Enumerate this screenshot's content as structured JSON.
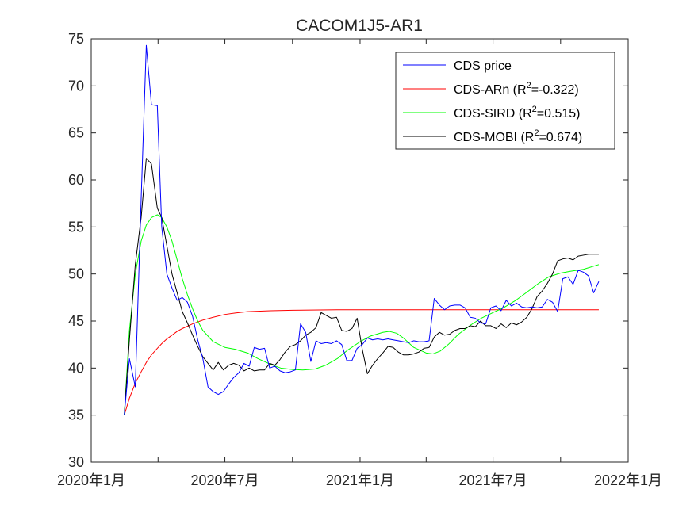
{
  "chart_data": {
    "type": "line",
    "title": "CACOM1J5-AR1",
    "xlabel": "",
    "ylabel": "",
    "x_range": [
      "2020-01-01",
      "2022-01-01"
    ],
    "ylim": [
      30,
      75
    ],
    "y_ticks": [
      30,
      35,
      40,
      45,
      50,
      55,
      60,
      65,
      70,
      75
    ],
    "x_tick_labels": [
      "2020年1月",
      "2020年7月",
      "2021年1月",
      "2021年7月",
      "2022年1月"
    ],
    "grid": false,
    "legend_position": "top-right",
    "series": [
      {
        "name": "CDS price",
        "color": "#0000ff",
        "points": [
          [
            "2020-02-15",
            35.0
          ],
          [
            "2020-02-22",
            41.0
          ],
          [
            "2020-03-01",
            38.0
          ],
          [
            "2020-03-09",
            58.0
          ],
          [
            "2020-03-16",
            74.3
          ],
          [
            "2020-03-23",
            68.0
          ],
          [
            "2020-03-31",
            67.9
          ],
          [
            "2020-04-06",
            55.0
          ],
          [
            "2020-04-13",
            50.0
          ],
          [
            "2020-04-20",
            48.5
          ],
          [
            "2020-04-27",
            47.2
          ],
          [
            "2020-05-04",
            47.5
          ],
          [
            "2020-05-11",
            47.0
          ],
          [
            "2020-05-18",
            45.5
          ],
          [
            "2020-05-25",
            43.0
          ],
          [
            "2020-06-01",
            41.0
          ],
          [
            "2020-06-08",
            38.0
          ],
          [
            "2020-06-15",
            37.5
          ],
          [
            "2020-06-22",
            37.2
          ],
          [
            "2020-06-29",
            37.5
          ],
          [
            "2020-07-06",
            38.3
          ],
          [
            "2020-07-13",
            39.0
          ],
          [
            "2020-07-20",
            39.5
          ],
          [
            "2020-07-27",
            40.5
          ],
          [
            "2020-08-03",
            40.2
          ],
          [
            "2020-08-10",
            42.2
          ],
          [
            "2020-08-17",
            42.0
          ],
          [
            "2020-08-24",
            42.1
          ],
          [
            "2020-08-31",
            40.0
          ],
          [
            "2020-09-07",
            40.2
          ],
          [
            "2020-09-14",
            39.7
          ],
          [
            "2020-09-21",
            39.5
          ],
          [
            "2020-09-28",
            39.6
          ],
          [
            "2020-10-05",
            39.8
          ],
          [
            "2020-10-12",
            44.7
          ],
          [
            "2020-10-19",
            43.8
          ],
          [
            "2020-10-26",
            40.7
          ],
          [
            "2020-11-02",
            42.9
          ],
          [
            "2020-11-09",
            42.6
          ],
          [
            "2020-11-16",
            42.7
          ],
          [
            "2020-11-23",
            42.6
          ],
          [
            "2020-11-30",
            42.9
          ],
          [
            "2020-12-07",
            42.5
          ],
          [
            "2020-12-14",
            40.8
          ],
          [
            "2020-12-21",
            40.8
          ],
          [
            "2020-12-28",
            42.1
          ],
          [
            "2021-01-04",
            42.5
          ],
          [
            "2021-01-11",
            43.2
          ],
          [
            "2021-01-18",
            43.0
          ],
          [
            "2021-01-25",
            43.1
          ],
          [
            "2021-02-01",
            43.0
          ],
          [
            "2021-02-08",
            43.1
          ],
          [
            "2021-02-15",
            43.0
          ],
          [
            "2021-02-22",
            42.9
          ],
          [
            "2021-03-01",
            42.8
          ],
          [
            "2021-03-08",
            42.7
          ],
          [
            "2021-03-15",
            42.9
          ],
          [
            "2021-03-22",
            42.8
          ],
          [
            "2021-03-29",
            42.8
          ],
          [
            "2021-04-05",
            42.9
          ],
          [
            "2021-04-12",
            47.4
          ],
          [
            "2021-04-19",
            46.7
          ],
          [
            "2021-04-26",
            46.2
          ],
          [
            "2021-05-03",
            46.6
          ],
          [
            "2021-05-10",
            46.7
          ],
          [
            "2021-05-17",
            46.7
          ],
          [
            "2021-05-24",
            46.4
          ],
          [
            "2021-05-31",
            45.4
          ],
          [
            "2021-06-07",
            45.3
          ],
          [
            "2021-06-14",
            44.8
          ],
          [
            "2021-06-21",
            44.7
          ],
          [
            "2021-06-28",
            46.4
          ],
          [
            "2021-07-05",
            46.6
          ],
          [
            "2021-07-12",
            46.1
          ],
          [
            "2021-07-19",
            47.2
          ],
          [
            "2021-07-26",
            46.6
          ],
          [
            "2021-08-02",
            46.9
          ],
          [
            "2021-08-09",
            46.5
          ],
          [
            "2021-08-16",
            46.4
          ],
          [
            "2021-08-23",
            46.5
          ],
          [
            "2021-08-30",
            46.4
          ],
          [
            "2021-09-06",
            46.5
          ],
          [
            "2021-09-13",
            47.3
          ],
          [
            "2021-09-20",
            47.0
          ],
          [
            "2021-09-27",
            46.0
          ],
          [
            "2021-10-04",
            49.5
          ],
          [
            "2021-10-11",
            49.7
          ],
          [
            "2021-10-18",
            48.9
          ],
          [
            "2021-10-25",
            50.4
          ],
          [
            "2021-11-01",
            50.2
          ],
          [
            "2021-11-08",
            49.8
          ],
          [
            "2021-11-15",
            48.0
          ],
          [
            "2021-11-22",
            49.2
          ]
        ]
      },
      {
        "name": "CDS-ARn   (R²=-0.322)",
        "name_parts": [
          "CDS-ARn   (R",
          "2",
          "=-0.322)"
        ],
        "color": "#ff0000",
        "points": [
          [
            "2020-02-15",
            35.0
          ],
          [
            "2020-02-22",
            36.8
          ],
          [
            "2020-03-01",
            38.4
          ],
          [
            "2020-03-09",
            39.6
          ],
          [
            "2020-03-16",
            40.6
          ],
          [
            "2020-03-23",
            41.4
          ],
          [
            "2020-03-31",
            42.1
          ],
          [
            "2020-04-06",
            42.6
          ],
          [
            "2020-04-13",
            43.1
          ],
          [
            "2020-04-20",
            43.5
          ],
          [
            "2020-04-27",
            43.9
          ],
          [
            "2020-05-04",
            44.2
          ],
          [
            "2020-05-18",
            44.7
          ],
          [
            "2020-06-01",
            45.1
          ],
          [
            "2020-06-15",
            45.4
          ],
          [
            "2020-07-01",
            45.7
          ],
          [
            "2020-07-15",
            45.85
          ],
          [
            "2020-08-01",
            46.0
          ],
          [
            "2020-09-01",
            46.1
          ],
          [
            "2020-10-01",
            46.15
          ],
          [
            "2020-12-01",
            46.2
          ],
          [
            "2021-03-01",
            46.2
          ],
          [
            "2021-06-01",
            46.2
          ],
          [
            "2021-09-01",
            46.2
          ],
          [
            "2021-11-22",
            46.2
          ]
        ]
      },
      {
        "name": "CDS-SIRD (R²=0.515)",
        "name_parts": [
          "CDS-SIRD (R",
          "2",
          "=0.515)"
        ],
        "color": "#00ff00",
        "points": [
          [
            "2020-02-15",
            35.0
          ],
          [
            "2020-02-22",
            44.0
          ],
          [
            "2020-03-01",
            50.0
          ],
          [
            "2020-03-09",
            53.5
          ],
          [
            "2020-03-16",
            55.2
          ],
          [
            "2020-03-23",
            56.0
          ],
          [
            "2020-03-31",
            56.3
          ],
          [
            "2020-04-06",
            56.0
          ],
          [
            "2020-04-13",
            55.0
          ],
          [
            "2020-04-20",
            53.5
          ],
          [
            "2020-04-27",
            51.5
          ],
          [
            "2020-05-04",
            49.5
          ],
          [
            "2020-05-11",
            47.8
          ],
          [
            "2020-05-18",
            46.3
          ],
          [
            "2020-05-25",
            45.0
          ],
          [
            "2020-06-01",
            44.0
          ],
          [
            "2020-06-15",
            42.8
          ],
          [
            "2020-07-01",
            42.2
          ],
          [
            "2020-07-15",
            42.0
          ],
          [
            "2020-08-01",
            41.6
          ],
          [
            "2020-08-15",
            41.0
          ],
          [
            "2020-09-01",
            40.4
          ],
          [
            "2020-09-15",
            40.0
          ],
          [
            "2020-10-01",
            39.85
          ],
          [
            "2020-10-15",
            39.8
          ],
          [
            "2020-11-01",
            39.9
          ],
          [
            "2020-11-15",
            40.3
          ],
          [
            "2020-12-01",
            41.0
          ],
          [
            "2020-12-15",
            41.9
          ],
          [
            "2021-01-01",
            42.8
          ],
          [
            "2021-01-15",
            43.4
          ],
          [
            "2021-02-01",
            43.8
          ],
          [
            "2021-02-10",
            43.9
          ],
          [
            "2021-02-20",
            43.7
          ],
          [
            "2021-03-01",
            43.2
          ],
          [
            "2021-03-15",
            42.2
          ],
          [
            "2021-04-01",
            41.6
          ],
          [
            "2021-04-10",
            41.5
          ],
          [
            "2021-04-20",
            41.8
          ],
          [
            "2021-05-01",
            42.5
          ],
          [
            "2021-05-15",
            43.6
          ],
          [
            "2021-06-01",
            44.6
          ],
          [
            "2021-06-15",
            45.3
          ],
          [
            "2021-07-01",
            45.9
          ],
          [
            "2021-07-15",
            46.4
          ],
          [
            "2021-08-01",
            47.2
          ],
          [
            "2021-08-15",
            48.0
          ],
          [
            "2021-09-01",
            49.0
          ],
          [
            "2021-09-15",
            49.7
          ],
          [
            "2021-10-01",
            50.1
          ],
          [
            "2021-10-15",
            50.3
          ],
          [
            "2021-11-01",
            50.5
          ],
          [
            "2021-11-22",
            51.0
          ]
        ]
      },
      {
        "name": "CDS-MOBI (R²=0.674)",
        "name_parts": [
          "CDS-MOBI (R",
          "2",
          "=0.674)"
        ],
        "color": "#000000",
        "points": [
          [
            "2020-02-15",
            35.0
          ],
          [
            "2020-02-22",
            43.0
          ],
          [
            "2020-03-01",
            51.0
          ],
          [
            "2020-03-09",
            56.0
          ],
          [
            "2020-03-16",
            62.3
          ],
          [
            "2020-03-23",
            61.7
          ],
          [
            "2020-03-31",
            57.0
          ],
          [
            "2020-04-06",
            56.0
          ],
          [
            "2020-04-13",
            53.0
          ],
          [
            "2020-04-20",
            50.0
          ],
          [
            "2020-04-27",
            48.0
          ],
          [
            "2020-05-04",
            46.0
          ],
          [
            "2020-05-11",
            44.8
          ],
          [
            "2020-05-18",
            43.5
          ],
          [
            "2020-05-25",
            42.3
          ],
          [
            "2020-06-01",
            41.2
          ],
          [
            "2020-06-08",
            40.5
          ],
          [
            "2020-06-15",
            39.8
          ],
          [
            "2020-06-22",
            40.6
          ],
          [
            "2020-06-29",
            39.8
          ],
          [
            "2020-07-06",
            40.3
          ],
          [
            "2020-07-13",
            40.5
          ],
          [
            "2020-07-20",
            40.3
          ],
          [
            "2020-07-27",
            39.7
          ],
          [
            "2020-08-03",
            40.0
          ],
          [
            "2020-08-10",
            39.7
          ],
          [
            "2020-08-17",
            39.8
          ],
          [
            "2020-08-24",
            39.8
          ],
          [
            "2020-08-31",
            40.5
          ],
          [
            "2020-09-07",
            40.3
          ],
          [
            "2020-09-14",
            40.9
          ],
          [
            "2020-09-21",
            41.7
          ],
          [
            "2020-09-28",
            42.3
          ],
          [
            "2020-10-05",
            42.5
          ],
          [
            "2020-10-12",
            42.9
          ],
          [
            "2020-10-19",
            43.5
          ],
          [
            "2020-10-26",
            43.8
          ],
          [
            "2020-11-02",
            44.3
          ],
          [
            "2020-11-09",
            45.9
          ],
          [
            "2020-11-16",
            45.6
          ],
          [
            "2020-11-23",
            45.3
          ],
          [
            "2020-11-30",
            45.4
          ],
          [
            "2020-12-07",
            44.0
          ],
          [
            "2020-12-14",
            43.9
          ],
          [
            "2020-12-21",
            44.2
          ],
          [
            "2020-12-28",
            45.3
          ],
          [
            "2021-01-04",
            42.0
          ],
          [
            "2021-01-11",
            39.4
          ],
          [
            "2021-01-18",
            40.3
          ],
          [
            "2021-01-25",
            41.0
          ],
          [
            "2021-02-01",
            41.6
          ],
          [
            "2021-02-08",
            42.3
          ],
          [
            "2021-02-15",
            42.2
          ],
          [
            "2021-02-22",
            41.7
          ],
          [
            "2021-03-01",
            41.4
          ],
          [
            "2021-03-08",
            41.4
          ],
          [
            "2021-03-15",
            41.5
          ],
          [
            "2021-03-22",
            41.7
          ],
          [
            "2021-03-29",
            42.1
          ],
          [
            "2021-04-05",
            42.2
          ],
          [
            "2021-04-12",
            43.3
          ],
          [
            "2021-04-19",
            43.8
          ],
          [
            "2021-04-26",
            43.5
          ],
          [
            "2021-05-03",
            43.6
          ],
          [
            "2021-05-10",
            44.0
          ],
          [
            "2021-05-17",
            44.2
          ],
          [
            "2021-05-24",
            44.2
          ],
          [
            "2021-05-31",
            44.5
          ],
          [
            "2021-06-07",
            44.4
          ],
          [
            "2021-06-14",
            45.0
          ],
          [
            "2021-06-21",
            44.5
          ],
          [
            "2021-06-28",
            44.5
          ],
          [
            "2021-07-05",
            44.2
          ],
          [
            "2021-07-12",
            44.7
          ],
          [
            "2021-07-19",
            44.3
          ],
          [
            "2021-07-26",
            44.8
          ],
          [
            "2021-08-02",
            44.6
          ],
          [
            "2021-08-09",
            44.9
          ],
          [
            "2021-08-16",
            45.4
          ],
          [
            "2021-08-23",
            46.3
          ],
          [
            "2021-08-30",
            47.6
          ],
          [
            "2021-09-06",
            48.2
          ],
          [
            "2021-09-13",
            49.0
          ],
          [
            "2021-09-20",
            50.0
          ],
          [
            "2021-09-27",
            51.4
          ],
          [
            "2021-10-04",
            51.6
          ],
          [
            "2021-10-11",
            51.7
          ],
          [
            "2021-10-18",
            51.5
          ],
          [
            "2021-10-25",
            51.9
          ],
          [
            "2021-11-01",
            52.0
          ],
          [
            "2021-11-08",
            52.1
          ],
          [
            "2021-11-15",
            52.1
          ],
          [
            "2021-11-22",
            52.1
          ]
        ]
      }
    ]
  }
}
